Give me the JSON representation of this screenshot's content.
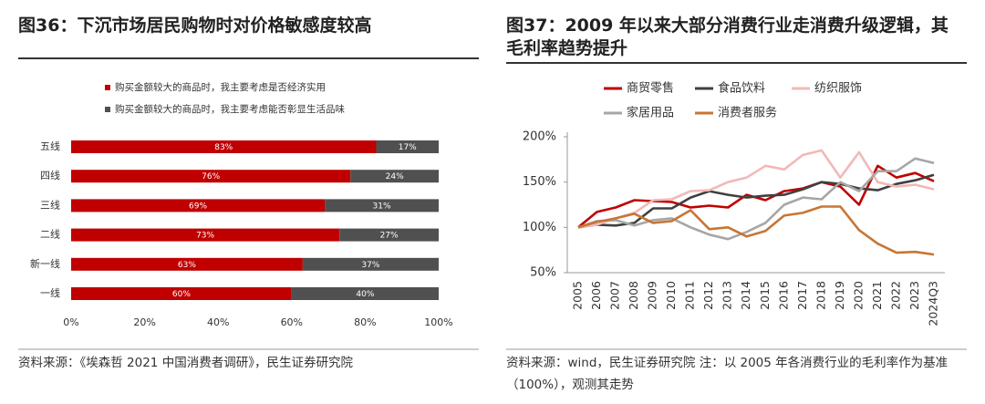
{
  "chart_data": [
    {
      "type": "stacked-barh",
      "title": "图36：下沉市场居民购物时对价格敏感度较高",
      "note": "资料来源：《埃森哲 2021 中国消费者调研》，民生证券研究院",
      "categories": [
        "五线",
        "四线",
        "三线",
        "二线",
        "新一线",
        "一线"
      ],
      "series": [
        {
          "name": "购买金额较大的商品时，我主要考虑是否经济实用",
          "color": "#c00000",
          "values": [
            83,
            76,
            69,
            73,
            63,
            60
          ],
          "value_labels": [
            "83%",
            "76%",
            "69%",
            "73%",
            "63%",
            "60%"
          ]
        },
        {
          "name": "购买金额较大的商品时，我主要考虑能否彰显生活品味",
          "color": "#505050",
          "values": [
            17,
            24,
            31,
            27,
            37,
            40
          ],
          "value_labels": [
            "17%",
            "24%",
            "31%",
            "27%",
            "37%",
            "40%"
          ]
        }
      ],
      "xlim": [
        0,
        100
      ],
      "xticks": [
        {
          "value": 0,
          "label": "0%"
        },
        {
          "value": 20,
          "label": "20%"
        },
        {
          "value": 40,
          "label": "40%"
        },
        {
          "value": 60,
          "label": "60%"
        },
        {
          "value": 80,
          "label": "80%"
        },
        {
          "value": 100,
          "label": "100%"
        }
      ]
    },
    {
      "type": "line",
      "title": "图37：2009 年以来大部分消费行业走消费升级逻辑，其毛利率趋势提升",
      "note": "资料来源：wind，民生证券研究院 注：以 2005 年各消费行业的毛利率作为基准（100%），观测其走势",
      "categories": [
        "2005",
        "2006",
        "2007",
        "2008",
        "2009",
        "2010",
        "2011",
        "2012",
        "2013",
        "2014",
        "2015",
        "2016",
        "2017",
        "2018",
        "2019",
        "2020",
        "2021",
        "2022",
        "2023",
        "2024Q3"
      ],
      "series": [
        {
          "name": "商贸零售",
          "color": "#c00000",
          "values": [
            100,
            117,
            122,
            130,
            129,
            128,
            122,
            124,
            122,
            136,
            130,
            140,
            143,
            150,
            145,
            125,
            168,
            155,
            160,
            151
          ]
        },
        {
          "name": "食品饮料",
          "color": "#404040",
          "values": [
            100,
            103,
            102,
            105,
            121,
            121,
            133,
            140,
            136,
            133,
            135,
            136,
            142,
            150,
            148,
            143,
            141,
            148,
            152,
            158
          ]
        },
        {
          "name": "纺织服饰",
          "color": "#f2b8b8",
          "values": [
            100,
            103,
            110,
            116,
            130,
            131,
            140,
            141,
            150,
            155,
            168,
            164,
            180,
            185,
            155,
            183,
            150,
            145,
            147,
            142
          ]
        },
        {
          "name": "家居用品",
          "color": "#a6a6a6",
          "values": [
            100,
            107,
            108,
            102,
            108,
            110,
            100,
            92,
            87,
            95,
            105,
            125,
            133,
            131,
            150,
            140,
            162,
            162,
            176,
            171
          ]
        },
        {
          "name": "消费者服务",
          "color": "#c87533",
          "values": [
            100,
            106,
            110,
            115,
            105,
            107,
            119,
            98,
            100,
            90,
            96,
            113,
            116,
            123,
            123,
            97,
            82,
            72,
            73,
            70
          ]
        }
      ],
      "ylim": [
        50,
        200
      ],
      "yticks": [
        {
          "value": 50,
          "label": "50%"
        },
        {
          "value": 100,
          "label": "100%"
        },
        {
          "value": 150,
          "label": "150%"
        },
        {
          "value": 200,
          "label": "200%"
        }
      ]
    }
  ]
}
